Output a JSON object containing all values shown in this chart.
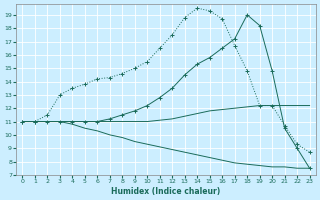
{
  "xlabel": "Humidex (Indice chaleur)",
  "bg_color": "#cceeff",
  "grid_color": "#ffffff",
  "line_color": "#1a6b5a",
  "xlim": [
    -0.5,
    23.5
  ],
  "ylim": [
    7,
    19.8
  ],
  "yticks": [
    7,
    8,
    9,
    10,
    11,
    12,
    13,
    14,
    15,
    16,
    17,
    18,
    19
  ],
  "xticks": [
    0,
    1,
    2,
    3,
    4,
    5,
    6,
    7,
    8,
    9,
    10,
    11,
    12,
    13,
    14,
    15,
    16,
    17,
    18,
    19,
    20,
    21,
    22,
    23
  ],
  "series": [
    {
      "x": [
        0,
        1,
        2,
        3,
        4,
        5,
        6,
        7,
        8,
        9,
        10,
        11,
        12,
        13,
        14,
        15,
        16,
        17,
        18,
        19,
        20,
        21,
        22,
        23
      ],
      "y": [
        11,
        11,
        11.5,
        13.0,
        13.5,
        13.8,
        14.2,
        14.3,
        14.6,
        15.0,
        15.5,
        16.5,
        17.5,
        18.8,
        19.5,
        19.3,
        18.7,
        16.7,
        14.8,
        12.2,
        12.2,
        10.7,
        9.3,
        8.7
      ],
      "marker": "+",
      "linestyle": "dotted"
    },
    {
      "x": [
        0,
        1,
        2,
        3,
        4,
        5,
        6,
        7,
        8,
        9,
        10,
        11,
        12,
        13,
        14,
        15,
        16,
        17,
        18,
        19,
        20,
        21,
        22,
        23
      ],
      "y": [
        11,
        11,
        11,
        11,
        11,
        11,
        11,
        11.2,
        11.5,
        11.8,
        12.2,
        12.8,
        13.5,
        14.5,
        15.3,
        15.8,
        16.5,
        17.2,
        19.0,
        18.2,
        14.8,
        10.5,
        9.0,
        7.5
      ],
      "marker": "+",
      "linestyle": "solid"
    },
    {
      "x": [
        0,
        1,
        2,
        3,
        4,
        5,
        6,
        7,
        8,
        9,
        10,
        11,
        12,
        13,
        14,
        15,
        16,
        17,
        18,
        19,
        20,
        21,
        22,
        23
      ],
      "y": [
        11,
        11,
        11,
        11,
        11,
        11,
        11,
        11,
        11,
        11,
        11,
        11.1,
        11.2,
        11.4,
        11.6,
        11.8,
        11.9,
        12.0,
        12.1,
        12.2,
        12.2,
        12.2,
        12.2,
        12.2
      ],
      "marker": null,
      "linestyle": "solid"
    },
    {
      "x": [
        0,
        1,
        2,
        3,
        4,
        5,
        6,
        7,
        8,
        9,
        10,
        11,
        12,
        13,
        14,
        15,
        16,
        17,
        18,
        19,
        20,
        21,
        22,
        23
      ],
      "y": [
        11,
        11,
        11,
        11,
        10.8,
        10.5,
        10.3,
        10.0,
        9.8,
        9.5,
        9.3,
        9.1,
        8.9,
        8.7,
        8.5,
        8.3,
        8.1,
        7.9,
        7.8,
        7.7,
        7.6,
        7.6,
        7.5,
        7.5
      ],
      "marker": null,
      "linestyle": "solid"
    }
  ]
}
